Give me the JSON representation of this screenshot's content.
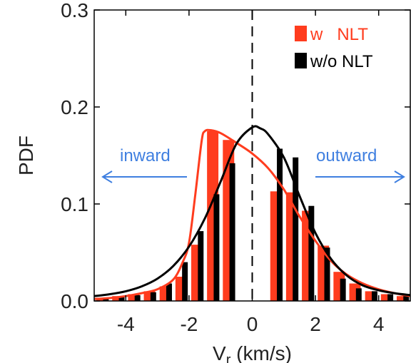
{
  "chart_data": {
    "type": "bar",
    "xlabel": "Vr (km/s)",
    "xlabel_main": "V",
    "xlabel_sub": "r",
    "xlabel_rest": " (km/s)",
    "ylabel": "PDF",
    "xlim": [
      -5,
      5
    ],
    "ylim": [
      0,
      0.3
    ],
    "xticks": [
      -4,
      -2,
      0,
      2,
      4
    ],
    "xtick_labels": [
      "-4",
      "-2",
      "0",
      "2",
      "4"
    ],
    "yticks": [
      0.0,
      0.1,
      0.2,
      0.3
    ],
    "ytick_labels": [
      "0.0",
      "0.1",
      "0.2",
      "0.3"
    ],
    "legend_position": "top-right",
    "series": [
      {
        "name": "w   NLT",
        "color": "#ff3c1e",
        "bars": {
          "x": [
            -4.75,
            -4.25,
            -3.75,
            -3.25,
            -2.75,
            -2.25,
            -1.75,
            -1.25,
            -0.75,
            -0.25,
            0.25,
            0.75,
            1.25,
            1.75,
            2.25,
            2.75,
            3.25,
            3.75,
            4.25,
            4.75
          ],
          "values": [
            0.003,
            0.005,
            0.007,
            0.01,
            0.015,
            0.025,
            0.058,
            0.175,
            0.166,
            0.0,
            0.0,
            0.113,
            0.112,
            0.093,
            0.057,
            0.03,
            0.018,
            0.01,
            0.007,
            0.005
          ]
        },
        "fit": {
          "x": [
            -5,
            -4.5,
            -4,
            -3.5,
            -3,
            -2.5,
            -2.2,
            -2,
            -1.8,
            -1.6,
            -1.5,
            -1.3,
            -1.0,
            -0.5,
            0,
            0.5,
            1.0,
            1.5,
            2.0,
            2.5,
            3.0,
            3.5,
            4.0,
            4.5,
            5.0
          ],
          "y": [
            0.002,
            0.003,
            0.005,
            0.008,
            0.012,
            0.022,
            0.04,
            0.06,
            0.11,
            0.165,
            0.175,
            0.176,
            0.173,
            0.163,
            0.152,
            0.137,
            0.115,
            0.087,
            0.062,
            0.041,
            0.027,
            0.018,
            0.012,
            0.008,
            0.005
          ]
        }
      },
      {
        "name": "w/o NLT",
        "color": "#000000",
        "bars": {
          "x": [
            -4.75,
            -4.25,
            -3.75,
            -3.25,
            -2.75,
            -2.25,
            -1.75,
            -1.25,
            -0.75,
            -0.25,
            0.25,
            0.75,
            1.25,
            1.75,
            2.25,
            2.75,
            3.25,
            3.75,
            4.25,
            4.75
          ],
          "values": [
            0.003,
            0.004,
            0.006,
            0.009,
            0.018,
            0.04,
            0.072,
            0.11,
            0.142,
            0.0,
            0.0,
            0.157,
            0.148,
            0.098,
            0.055,
            0.023,
            0.013,
            0.01,
            0.007,
            0.005
          ]
        },
        "fit": {
          "x": [
            -5,
            -4.5,
            -4,
            -3.5,
            -3,
            -2.5,
            -2,
            -1.5,
            -1.0,
            -0.5,
            0,
            0.25,
            0.5,
            1.0,
            1.5,
            2.0,
            2.5,
            3.0,
            3.5,
            4.0,
            4.5,
            5.0
          ],
          "y": [
            0.005,
            0.007,
            0.01,
            0.015,
            0.023,
            0.036,
            0.056,
            0.085,
            0.123,
            0.162,
            0.179,
            0.178,
            0.172,
            0.148,
            0.108,
            0.07,
            0.043,
            0.026,
            0.016,
            0.011,
            0.008,
            0.006
          ]
        }
      }
    ],
    "zero_line_style": "dashed vertical at x=0",
    "annotations": [
      {
        "text": "inward",
        "arrow": "left",
        "color": "#3f7fe0"
      },
      {
        "text": "outward",
        "arrow": "right",
        "color": "#3f7fe0"
      }
    ]
  }
}
